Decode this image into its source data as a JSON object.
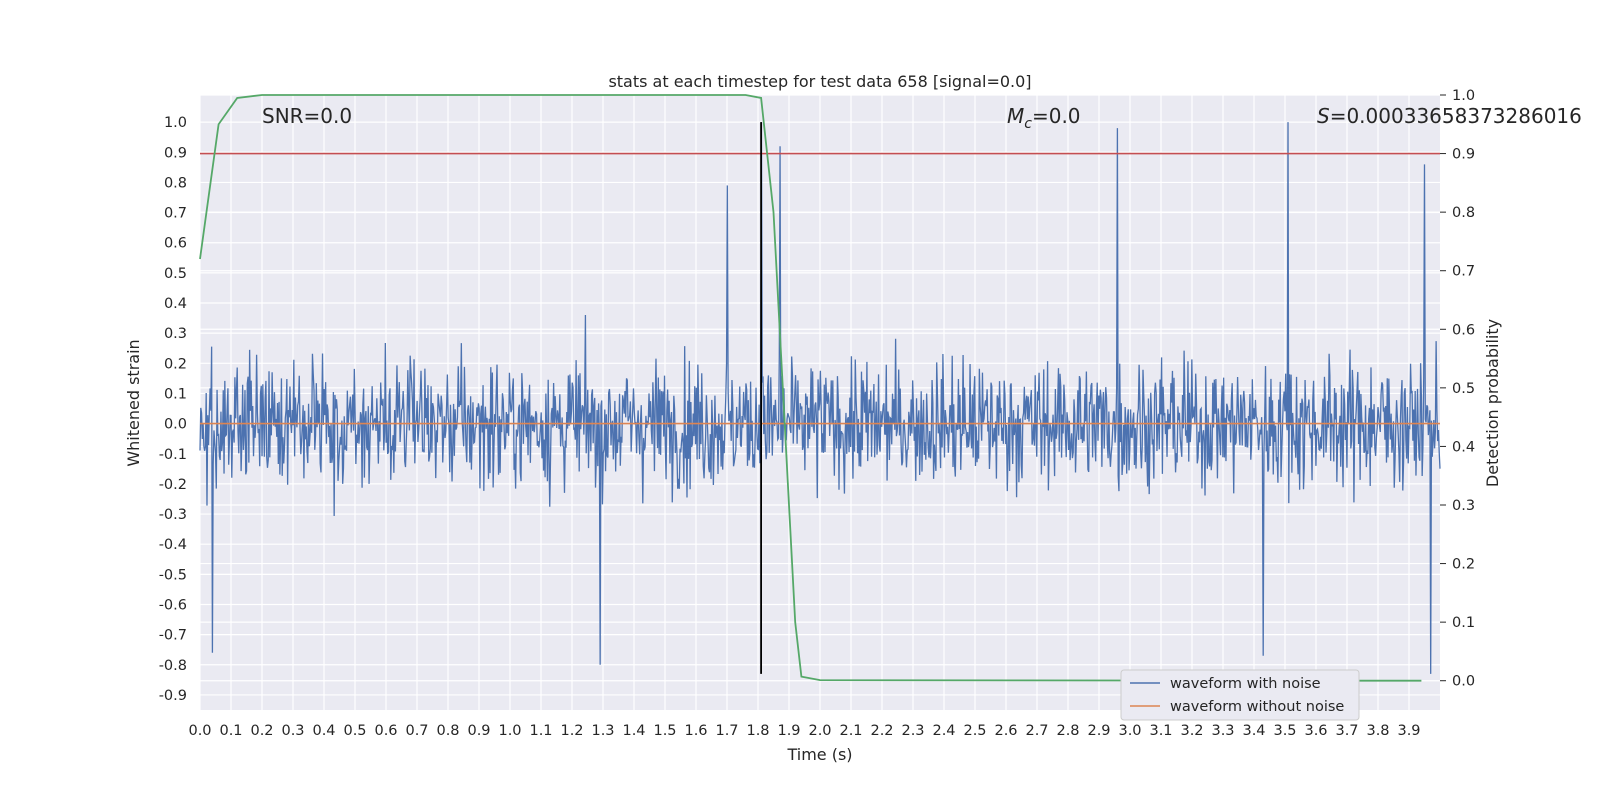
{
  "chart_data": {
    "type": "line",
    "title": "stats at each timestep for test data 658 [signal=0.0]",
    "xlabel": "Time (s)",
    "ylabel_left": "Whitened strain",
    "ylabel_right": "Detection probability",
    "xlim": [
      0.0,
      4.0
    ],
    "ylim_left": [
      -0.95,
      1.09
    ],
    "ylim_right": [
      -0.05,
      1.0
    ],
    "x_ticks": [
      "0.0",
      "0.1",
      "0.2",
      "0.3",
      "0.4",
      "0.5",
      "0.6",
      "0.7",
      "0.8",
      "0.9",
      "1.0",
      "1.1",
      "1.2",
      "1.3",
      "1.4",
      "1.5",
      "1.6",
      "1.7",
      "1.8",
      "1.9",
      "2.0",
      "2.1",
      "2.2",
      "2.3",
      "2.4",
      "2.5",
      "2.6",
      "2.7",
      "2.8",
      "2.9",
      "3.0",
      "3.1",
      "3.2",
      "3.3",
      "3.4",
      "3.5",
      "3.6",
      "3.7",
      "3.8",
      "3.9"
    ],
    "y_ticks_left": [
      "1.0",
      "0.9",
      "0.8",
      "0.7",
      "0.6",
      "0.5",
      "0.4",
      "0.3",
      "0.2",
      "0.1",
      "0.0",
      "-0.1",
      "-0.2",
      "-0.3",
      "-0.4",
      "-0.5",
      "-0.6",
      "-0.7",
      "-0.8",
      "-0.9"
    ],
    "y_ticks_right": [
      "1.0",
      "0.9",
      "0.8",
      "0.7",
      "0.6",
      "0.5",
      "0.4",
      "0.3",
      "0.2",
      "0.1",
      "0.0"
    ],
    "annotations": {
      "snr": "SNR=0.0",
      "mc_symbol": "M",
      "mc_sub": "c",
      "mc_value": "=0.0",
      "s_symbol": "S",
      "s_value": "=0.00033658373286016"
    },
    "noise_series": {
      "name": "waveform with noise",
      "color": "#4c72b0",
      "n_samples": 1600,
      "typical_amplitude": 0.33,
      "notable_peaks": [
        {
          "t": 1.81,
          "value": 1.0
        },
        {
          "t": 1.87,
          "value": 0.92
        },
        {
          "t": 2.96,
          "value": 0.98
        },
        {
          "t": 3.51,
          "value": 1.0
        },
        {
          "t": 3.95,
          "value": 0.86
        },
        {
          "t": 1.7,
          "value": 0.79
        },
        {
          "t": 0.04,
          "value": -0.76
        },
        {
          "t": 1.29,
          "value": -0.8
        },
        {
          "t": 3.43,
          "value": -0.77
        },
        {
          "t": 3.97,
          "value": -0.83
        }
      ]
    },
    "clean_series": {
      "name": "waveform without noise",
      "color": "#dd8452",
      "value": 0.0
    },
    "probability_series": {
      "name": "Detection probability",
      "color": "#55a868",
      "x": [
        0.0,
        0.06,
        0.12,
        0.2,
        0.4,
        1.0,
        1.76,
        1.81,
        1.85,
        1.88,
        1.92,
        1.94,
        2.0,
        3.5,
        3.94
      ],
      "y": [
        0.72,
        0.95,
        0.995,
        1.0,
        1.0,
        1.0,
        1.0,
        0.995,
        0.8,
        0.5,
        0.1,
        0.007,
        0.001,
        0.0,
        0.0
      ]
    },
    "threshold_line": {
      "value": 0.9,
      "axis": "right",
      "color": "#c44e52"
    },
    "event_marker": {
      "t": 1.81,
      "y_range": [
        -0.83,
        1.0
      ],
      "color": "#000000"
    },
    "legend": {
      "position": "bottom-right",
      "entries": [
        {
          "label": "waveform with noise",
          "color": "#4c72b0"
        },
        {
          "label": "waveform without noise",
          "color": "#dd8452"
        }
      ]
    }
  }
}
